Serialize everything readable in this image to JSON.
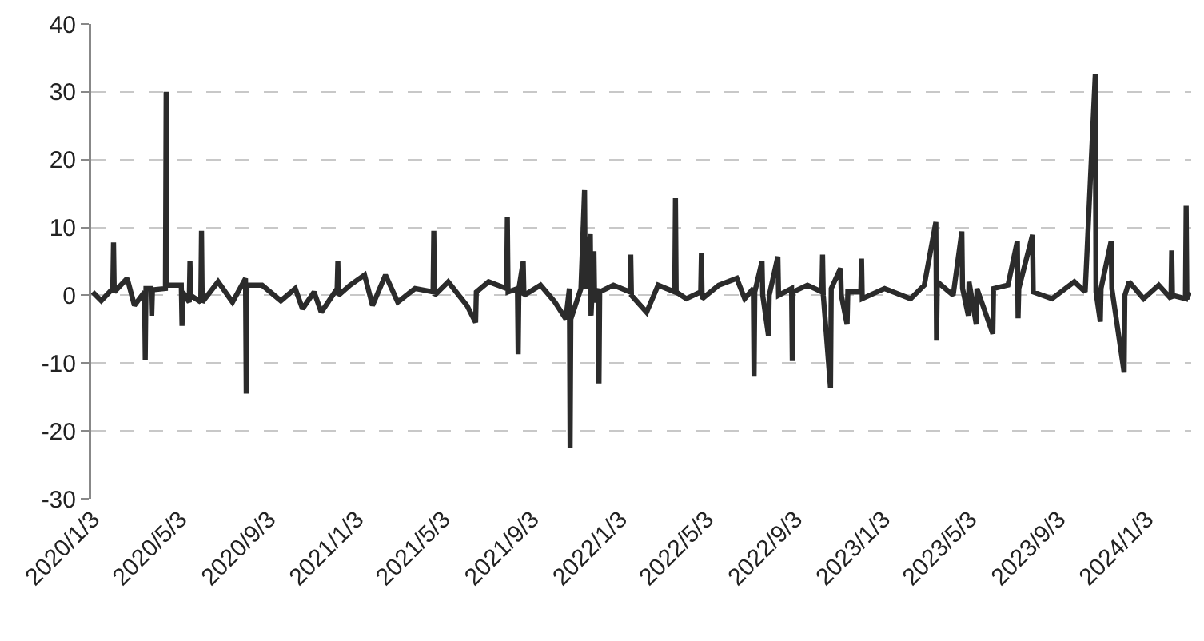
{
  "chart_data": {
    "type": "line",
    "x": [
      "2020-01-03",
      "2020-01-15",
      "2020-01-31",
      "2020-02-01",
      "2020-02-02",
      "2020-02-20",
      "2020-03-01",
      "2020-03-15",
      "2020-03-16",
      "2020-03-17",
      "2020-03-24",
      "2020-03-25",
      "2020-03-26",
      "2020-04-13",
      "2020-04-14",
      "2020-04-15",
      "2020-05-05",
      "2020-05-06",
      "2020-05-07",
      "2020-05-16",
      "2020-05-17",
      "2020-05-18",
      "2020-06-01",
      "2020-06-02",
      "2020-06-03",
      "2020-06-25",
      "2020-07-15",
      "2020-08-02",
      "2020-08-03",
      "2020-08-04",
      "2020-08-25",
      "2020-09-20",
      "2020-10-10",
      "2020-10-20",
      "2020-11-05",
      "2020-11-15",
      "2020-12-07",
      "2020-12-08",
      "2020-12-09",
      "2020-12-25",
      "2021-01-14",
      "2021-01-25",
      "2021-02-12",
      "2021-03-01",
      "2021-03-25",
      "2021-04-19",
      "2021-04-20",
      "2021-04-21",
      "2021-05-10",
      "2021-06-05",
      "2021-06-17",
      "2021-06-18",
      "2021-07-05",
      "2021-07-30",
      "2021-07-31",
      "2021-08-01",
      "2021-08-14",
      "2021-08-15",
      "2021-08-16",
      "2021-08-22",
      "2021-08-23",
      "2021-09-15",
      "2021-10-05",
      "2021-10-20",
      "2021-10-25",
      "2021-10-26",
      "2021-10-27",
      "2021-11-10",
      "2021-11-15",
      "2021-11-16",
      "2021-11-23",
      "2021-11-24",
      "2021-11-28",
      "2021-11-29",
      "2021-12-04",
      "2021-12-05",
      "2021-12-06",
      "2021-12-25",
      "2022-01-17",
      "2022-01-18",
      "2022-01-19",
      "2022-02-09",
      "2022-02-25",
      "2022-03-20",
      "2022-03-21",
      "2022-03-22",
      "2022-04-05",
      "2022-04-25",
      "2022-04-26",
      "2022-04-27",
      "2022-05-20",
      "2022-06-14",
      "2022-06-25",
      "2022-07-07",
      "2022-07-08",
      "2022-07-09",
      "2022-07-19",
      "2022-07-20",
      "2022-07-28",
      "2022-07-29",
      "2022-08-10",
      "2022-08-11",
      "2022-08-29",
      "2022-08-30",
      "2022-08-31",
      "2022-09-20",
      "2022-10-10",
      "2022-10-11",
      "2022-10-12",
      "2022-10-22",
      "2022-10-23",
      "2022-11-05",
      "2022-11-06",
      "2022-11-14",
      "2022-11-15",
      "2022-12-03",
      "2022-12-04",
      "2022-12-05",
      "2023-01-05",
      "2023-02-10",
      "2023-03-01",
      "2023-03-17",
      "2023-03-18",
      "2023-03-19",
      "2023-04-10",
      "2023-04-22",
      "2023-04-23",
      "2023-05-01",
      "2023-05-02",
      "2023-05-12",
      "2023-05-13",
      "2023-06-04",
      "2023-06-05",
      "2023-06-25",
      "2023-07-08",
      "2023-07-09",
      "2023-07-10",
      "2023-07-29",
      "2023-07-30",
      "2023-08-25",
      "2023-09-25",
      "2023-10-10",
      "2023-10-24",
      "2023-10-25",
      "2023-10-31",
      "2023-11-01",
      "2023-11-15",
      "2023-11-16",
      "2023-12-03",
      "2023-12-04",
      "2023-12-10",
      "2023-12-30",
      "2024-01-20",
      "2024-02-06",
      "2024-02-07",
      "2024-02-08",
      "2024-02-26",
      "2024-02-27",
      "2024-02-28",
      "2024-03-03"
    ],
    "series": [
      {
        "color": "#2b2b2b",
        "values": [
          0.5,
          -0.8,
          1,
          7.8,
          0.5,
          2.5,
          -1.5,
          0.5,
          -9.5,
          1,
          1,
          -3,
          0.8,
          1,
          30,
          1.5,
          1.5,
          -4.5,
          0.5,
          -1,
          5,
          0,
          -1,
          9.5,
          -1,
          2,
          -1,
          2.5,
          -14.5,
          1.5,
          1.5,
          -0.8,
          1,
          -2,
          0.5,
          -2.5,
          1,
          5,
          0,
          1.5,
          3,
          -1.5,
          3,
          -1,
          1,
          0.5,
          9.5,
          0,
          2,
          -1.5,
          -4,
          0.5,
          2,
          1,
          11.5,
          0.5,
          1,
          -8.7,
          1,
          5,
          0,
          1.5,
          -1,
          -3.5,
          1,
          -22.5,
          -3.5,
          1,
          15.5,
          1,
          9,
          -3,
          6.5,
          -1,
          1,
          -13,
          0.5,
          1.5,
          0.5,
          6,
          0,
          -2.5,
          1.5,
          0.5,
          14.3,
          0.5,
          -0.5,
          0.5,
          6.3,
          -0.5,
          1.5,
          2.5,
          -0.5,
          1,
          -12,
          0.5,
          5,
          0,
          -6,
          0,
          5.7,
          0,
          1,
          -9.7,
          0.5,
          1.5,
          0.5,
          6,
          0,
          -13.7,
          1,
          4,
          0,
          -4.3,
          0.5,
          0.5,
          5.4,
          -0.5,
          1,
          -0.5,
          1.5,
          10.8,
          -6.7,
          2,
          0,
          9.4,
          1,
          -3,
          2,
          -4.3,
          1,
          -5.7,
          1,
          1.5,
          8,
          -3.4,
          1,
          8.9,
          0.5,
          -0.5,
          2,
          0.5,
          32.6,
          0.5,
          -3.9,
          1,
          8,
          1,
          -11.4,
          0,
          2,
          -0.5,
          1.5,
          -0.5,
          6.6,
          0,
          -0.5,
          13.2,
          -0.5,
          0.5
        ]
      }
    ],
    "xlim": [
      "2020-01-01",
      "2024-03-05"
    ],
    "xticks": [
      {
        "value": "2020-01-03",
        "label": "2020/1/3"
      },
      {
        "value": "2020-05-03",
        "label": "2020/5/3"
      },
      {
        "value": "2020-09-03",
        "label": "2020/9/3"
      },
      {
        "value": "2021-01-03",
        "label": "2021/1/3"
      },
      {
        "value": "2021-05-03",
        "label": "2021/5/3"
      },
      {
        "value": "2021-09-03",
        "label": "2021/9/3"
      },
      {
        "value": "2022-01-03",
        "label": "2022/1/3"
      },
      {
        "value": "2022-05-03",
        "label": "2022/5/3"
      },
      {
        "value": "2022-09-03",
        "label": "2022/9/3"
      },
      {
        "value": "2023-01-03",
        "label": "2023/1/3"
      },
      {
        "value": "2023-05-03",
        "label": "2023/5/3"
      },
      {
        "value": "2023-09-03",
        "label": "2023/9/3"
      },
      {
        "value": "2024-01-03",
        "label": "2024/1/3"
      }
    ],
    "ylim": [
      -30,
      40
    ],
    "yticks": [
      -30,
      -20,
      -10,
      0,
      10,
      20,
      30,
      40
    ],
    "grid": "y",
    "marker": "none",
    "line_style": "solid",
    "legend": false
  }
}
